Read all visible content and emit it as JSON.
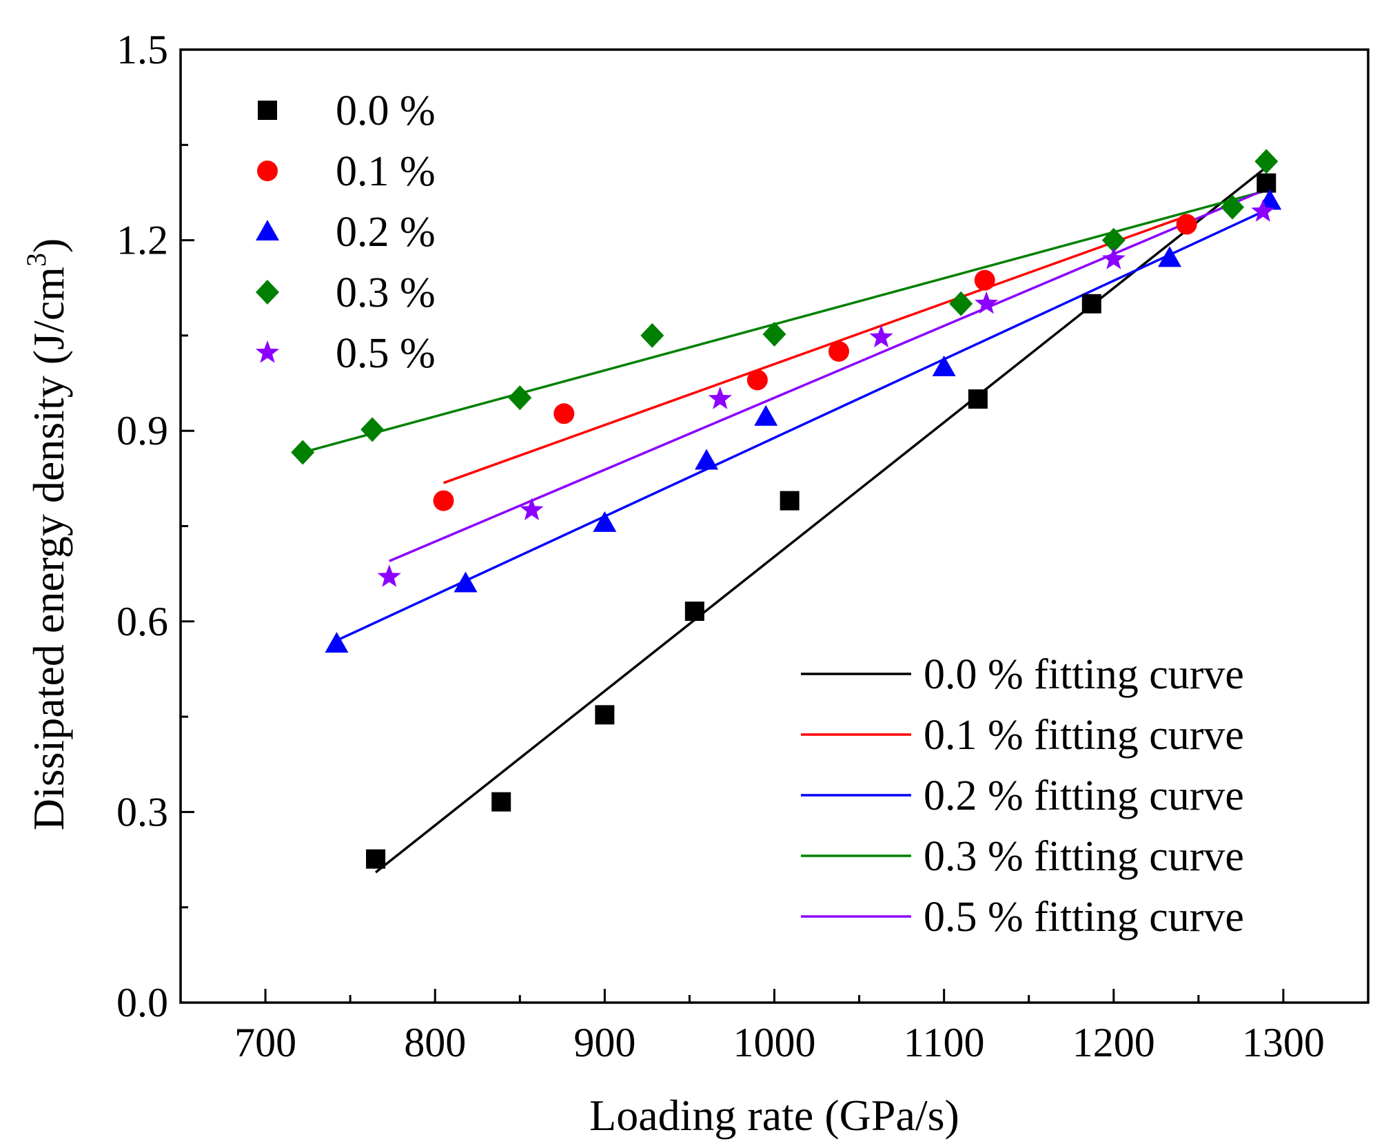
{
  "chart_data": {
    "type": "scatter",
    "xlabel": "Loading rate (GPa/s)",
    "ylabel": "Dissipated energy density (J/cm",
    "ylabel_sup": "3",
    "ylabel_close": ")",
    "xlim": [
      650,
      1350
    ],
    "ylim": [
      0.0,
      1.5
    ],
    "xticks": [
      700,
      800,
      900,
      1000,
      1100,
      1200,
      1300
    ],
    "xtick_labels": [
      "700",
      "800",
      "900",
      "1000",
      "1100",
      "1200",
      "1300"
    ],
    "yticks": [
      0.0,
      0.3,
      0.6,
      0.9,
      1.2,
      1.5
    ],
    "ytick_labels": [
      "0.0",
      "0.3",
      "0.6",
      "0.9",
      "1.2",
      "1.5"
    ],
    "grid": false,
    "scatter_legend_position": "top-left",
    "fit_legend_position": "bottom-right",
    "series": [
      {
        "name": "0.0 %",
        "fit_name": "0.0 % fitting curve",
        "marker": "square",
        "color": "#000000",
        "points": [
          [
            765,
            0.226
          ],
          [
            839,
            0.316
          ],
          [
            900,
            0.453
          ],
          [
            953,
            0.616
          ],
          [
            1009,
            0.79
          ],
          [
            1120,
            0.95
          ],
          [
            1187,
            1.1
          ],
          [
            1290,
            1.29
          ]
        ],
        "fit": [
          [
            765,
            0.205
          ],
          [
            1290,
            1.315
          ]
        ]
      },
      {
        "name": "0.1 %",
        "fit_name": "0.1 % fitting curve",
        "marker": "circle",
        "color": "#ff0000",
        "points": [
          [
            805,
            0.79
          ],
          [
            876,
            0.927
          ],
          [
            990,
            0.98
          ],
          [
            1038,
            1.025
          ],
          [
            1124,
            1.137
          ],
          [
            1243,
            1.225
          ]
        ],
        "fit": [
          [
            805,
            0.818
          ],
          [
            1243,
            1.238
          ]
        ]
      },
      {
        "name": "0.2 %",
        "fit_name": "0.2 % fitting curve",
        "marker": "triangle",
        "color": "#0000ff",
        "points": [
          [
            742,
            0.565
          ],
          [
            818,
            0.66
          ],
          [
            900,
            0.755
          ],
          [
            960,
            0.853
          ],
          [
            995,
            0.922
          ],
          [
            1100,
            1.0
          ],
          [
            1233,
            1.172
          ],
          [
            1292,
            1.262
          ]
        ],
        "fit": [
          [
            742,
            0.57
          ],
          [
            1292,
            1.25
          ]
        ]
      },
      {
        "name": "0.3 %",
        "fit_name": "0.3 % fitting curve",
        "marker": "diamond",
        "color": "#008000",
        "points": [
          [
            722,
            0.866
          ],
          [
            763,
            0.902
          ],
          [
            850,
            0.952
          ],
          [
            928,
            1.05
          ],
          [
            1000,
            1.052
          ],
          [
            1110,
            1.1
          ],
          [
            1200,
            1.2
          ],
          [
            1270,
            1.252
          ],
          [
            1290,
            1.324
          ]
        ],
        "fit": [
          [
            722,
            0.866
          ],
          [
            1290,
            1.278
          ]
        ]
      },
      {
        "name": "0.5 %",
        "fit_name": "0.5 % fitting curve",
        "marker": "star",
        "color": "#8b00ff",
        "points": [
          [
            773,
            0.67
          ],
          [
            857,
            0.775
          ],
          [
            968,
            0.95
          ],
          [
            1063,
            1.047
          ],
          [
            1125,
            1.1
          ],
          [
            1200,
            1.17
          ],
          [
            1288,
            1.245
          ]
        ],
        "fit": [
          [
            773,
            0.695
          ],
          [
            1288,
            1.278
          ]
        ]
      }
    ]
  }
}
